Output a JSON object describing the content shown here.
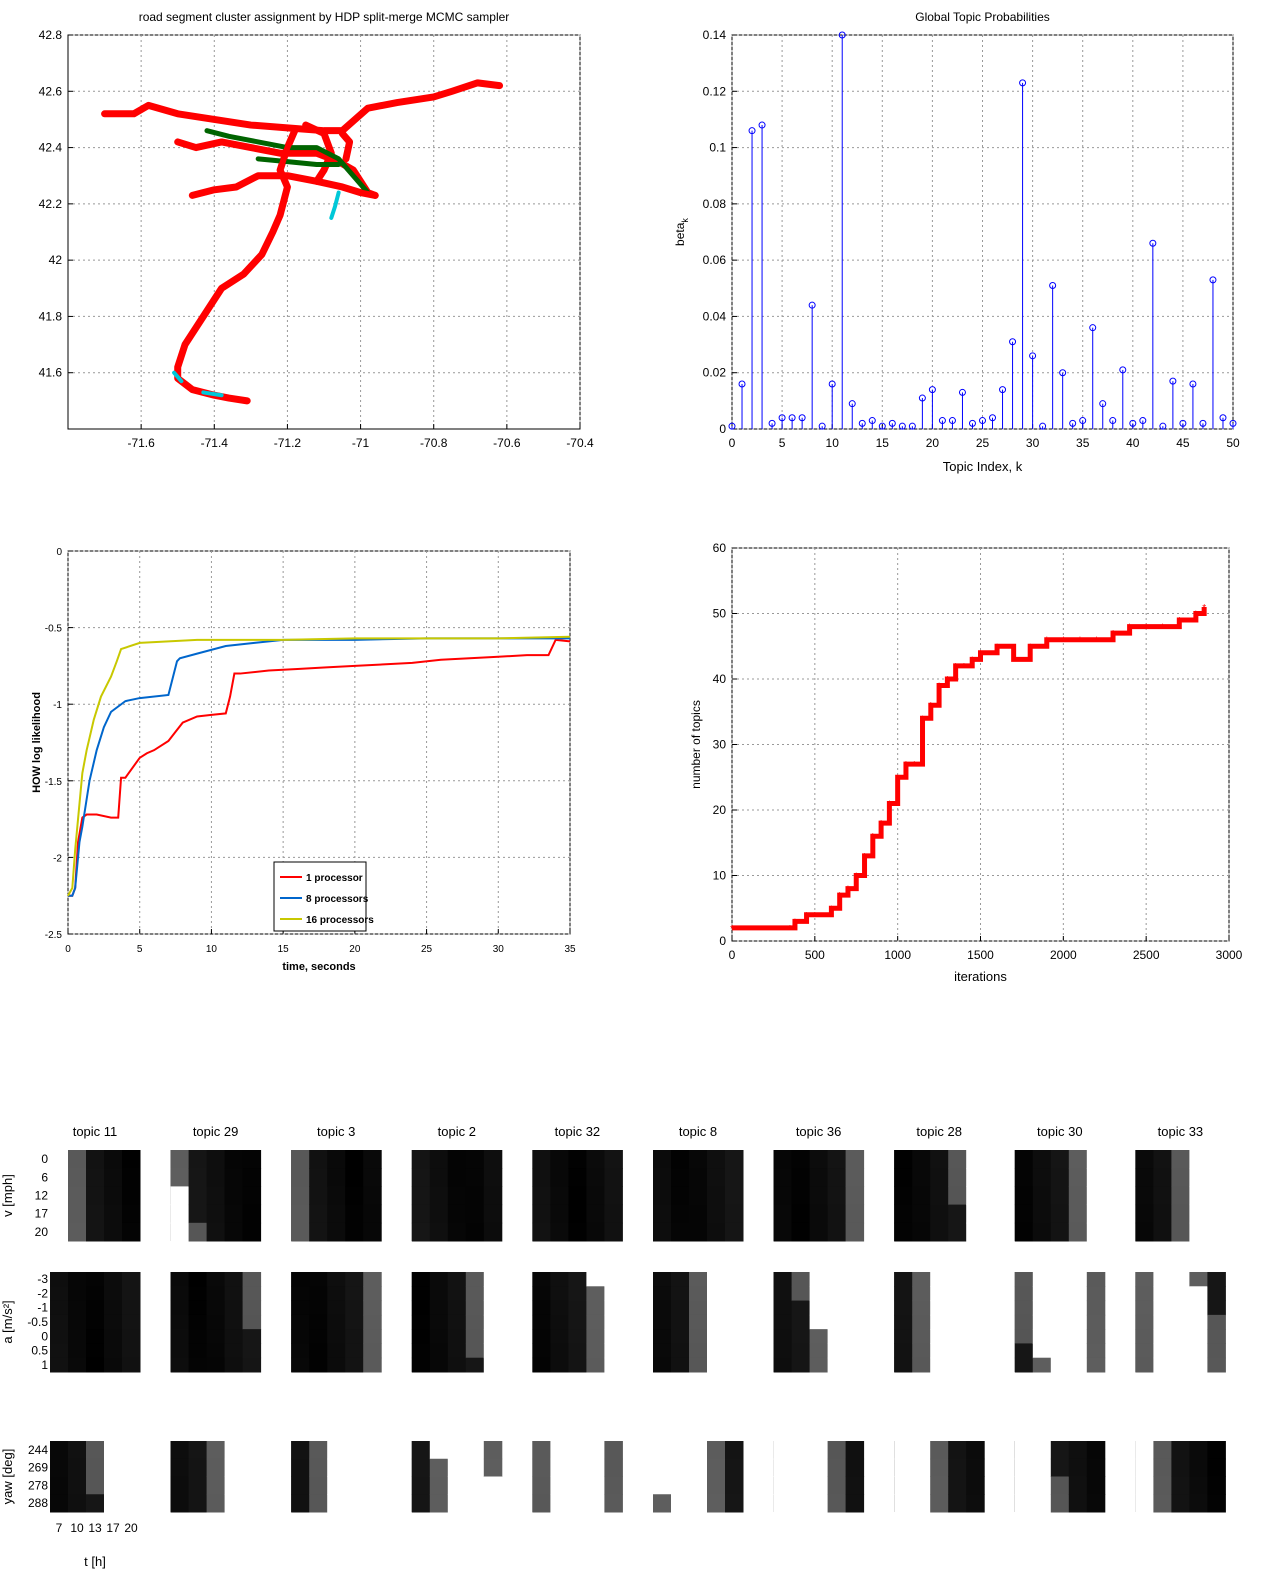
{
  "chart_data": [
    {
      "type": "scatter",
      "title": "road segment cluster assignment by HDP split-merge MCMC sampler",
      "xlim": [
        -71.8,
        -70.4
      ],
      "ylim": [
        41.4,
        42.8
      ],
      "xticks": [
        "-71.6",
        "-71.4",
        "-71.2",
        "-71",
        "-70.8",
        "-70.6",
        "-70.4"
      ],
      "yticks": [
        "41.6",
        "41.8",
        "42",
        "42.2",
        "42.4",
        "42.6",
        "42.8"
      ],
      "grid": true,
      "colors": {
        "main": "#ff0000",
        "secondary": "#006400",
        "tertiary": "#00c8d8"
      },
      "routes": [
        [
          [
            -71.7,
            42.52
          ],
          [
            -71.62,
            42.52
          ],
          [
            -71.58,
            42.55
          ],
          [
            -71.5,
            42.52
          ],
          [
            -71.4,
            42.5
          ],
          [
            -71.3,
            42.48
          ],
          [
            -71.2,
            42.47
          ],
          [
            -71.1,
            42.46
          ],
          [
            -71.05,
            42.46
          ],
          [
            -70.98,
            42.54
          ],
          [
            -70.9,
            42.56
          ],
          [
            -70.8,
            42.58
          ],
          [
            -70.75,
            42.6
          ],
          [
            -70.68,
            42.63
          ],
          [
            -70.62,
            42.62
          ]
        ],
        [
          [
            -71.5,
            42.42
          ],
          [
            -71.45,
            42.4
          ],
          [
            -71.38,
            42.42
          ],
          [
            -71.3,
            42.4
          ],
          [
            -71.22,
            42.38
          ],
          [
            -71.12,
            42.38
          ],
          [
            -71.06,
            42.35
          ],
          [
            -71.02,
            42.32
          ],
          [
            -70.98,
            42.24
          ],
          [
            -70.96,
            42.23
          ]
        ],
        [
          [
            -71.46,
            42.23
          ],
          [
            -71.4,
            42.25
          ],
          [
            -71.34,
            42.26
          ],
          [
            -71.28,
            42.3
          ],
          [
            -71.2,
            42.3
          ],
          [
            -71.12,
            42.28
          ],
          [
            -71.05,
            42.26
          ],
          [
            -71.0,
            42.24
          ],
          [
            -70.96,
            42.23
          ]
        ],
        [
          [
            -71.18,
            42.46
          ],
          [
            -71.2,
            42.4
          ],
          [
            -71.22,
            42.32
          ],
          [
            -71.2,
            42.26
          ],
          [
            -71.22,
            42.16
          ],
          [
            -71.24,
            42.1
          ],
          [
            -71.27,
            42.02
          ],
          [
            -71.32,
            41.95
          ],
          [
            -71.38,
            41.9
          ],
          [
            -71.42,
            41.82
          ],
          [
            -71.45,
            41.76
          ],
          [
            -71.48,
            41.7
          ],
          [
            -71.5,
            41.62
          ],
          [
            -71.5,
            41.58
          ],
          [
            -71.46,
            41.54
          ],
          [
            -71.4,
            41.52
          ],
          [
            -71.36,
            41.51
          ],
          [
            -71.31,
            41.5
          ]
        ],
        [
          [
            -71.15,
            42.48
          ],
          [
            -71.1,
            42.45
          ],
          [
            -71.08,
            42.38
          ],
          [
            -71.1,
            42.32
          ],
          [
            -71.12,
            42.28
          ]
        ],
        [
          [
            -71.05,
            42.45
          ],
          [
            -71.03,
            42.42
          ],
          [
            -71.04,
            42.36
          ]
        ]
      ],
      "secondary_routes": [
        [
          [
            -71.42,
            42.46
          ],
          [
            -71.36,
            42.44
          ],
          [
            -71.28,
            42.42
          ],
          [
            -71.2,
            42.4
          ],
          [
            -71.12,
            42.4
          ],
          [
            -71.06,
            42.36
          ],
          [
            -71.02,
            42.3
          ],
          [
            -70.98,
            42.24
          ]
        ],
        [
          [
            -71.28,
            42.36
          ],
          [
            -71.2,
            42.35
          ],
          [
            -71.12,
            42.34
          ],
          [
            -71.06,
            42.34
          ]
        ]
      ],
      "tertiary_routes": [
        [
          [
            -71.06,
            42.24
          ],
          [
            -71.07,
            42.19
          ],
          [
            -71.08,
            42.15
          ]
        ],
        [
          [
            -71.51,
            41.6
          ],
          [
            -71.49,
            41.57
          ]
        ],
        [
          [
            -71.43,
            41.53
          ],
          [
            -71.38,
            41.52
          ]
        ]
      ]
    },
    {
      "type": "stem",
      "title": "Global Topic Probabilities",
      "xlabel": "Topic Index, k",
      "ylabel": "beta_k",
      "xlim": [
        0,
        50
      ],
      "ylim": [
        0,
        0.14
      ],
      "xticks": [
        "0",
        "5",
        "10",
        "15",
        "20",
        "25",
        "30",
        "35",
        "40",
        "45",
        "50"
      ],
      "yticks": [
        "0",
        "0.02",
        "0.04",
        "0.06",
        "0.08",
        "0.1",
        "0.12",
        "0.14"
      ],
      "grid": true,
      "color": "#0000ff",
      "values": [
        0.001,
        0.016,
        0.106,
        0.108,
        0.002,
        0.004,
        0.004,
        0.004,
        0.044,
        0.001,
        0.016,
        0.14,
        0.009,
        0.002,
        0.003,
        0.001,
        0.002,
        0.001,
        0.001,
        0.011,
        0.014,
        0.003,
        0.003,
        0.013,
        0.002,
        0.003,
        0.004,
        0.014,
        0.031,
        0.123,
        0.026,
        0.001,
        0.051,
        0.02,
        0.002,
        0.003,
        0.036,
        0.009,
        0.003,
        0.021,
        0.002,
        0.003,
        0.066,
        0.001,
        0.017,
        0.002,
        0.016,
        0.002,
        0.053,
        0.004,
        0.002
      ]
    },
    {
      "type": "line",
      "ylabel": "HOW log likelihood",
      "xlabel": "time, seconds",
      "xlim": [
        0,
        35
      ],
      "ylim": [
        -2.5,
        0
      ],
      "xticks": [
        "0",
        "5",
        "10",
        "15",
        "20",
        "25",
        "30",
        "35"
      ],
      "yticks": [
        "0",
        "-0.5",
        "-1",
        "-1.5",
        "-2",
        "-2.5"
      ],
      "grid": true,
      "legend": "bottom-center",
      "series": [
        {
          "name": "1 processor",
          "color": "#ff0000",
          "x": [
            0,
            0.3,
            0.5,
            0.7,
            1,
            1.3,
            2,
            3,
            3.5,
            3.7,
            4,
            5,
            5.5,
            6,
            7,
            7.5,
            8,
            9,
            10,
            11,
            11.3,
            11.6,
            12,
            14,
            16,
            18,
            20,
            22,
            24,
            26,
            28,
            30,
            32,
            33.5,
            34,
            35
          ],
          "y": [
            -2.25,
            -2.25,
            -2.2,
            -1.9,
            -1.74,
            -1.72,
            -1.72,
            -1.74,
            -1.74,
            -1.48,
            -1.48,
            -1.35,
            -1.32,
            -1.3,
            -1.24,
            -1.18,
            -1.12,
            -1.08,
            -1.07,
            -1.06,
            -0.95,
            -0.8,
            -0.8,
            -0.78,
            -0.77,
            -0.76,
            -0.75,
            -0.74,
            -0.73,
            -0.71,
            -0.7,
            -0.69,
            -0.68,
            -0.68,
            -0.58,
            -0.59
          ]
        },
        {
          "name": "8 processors",
          "color": "#0066cc",
          "x": [
            0,
            0.3,
            0.5,
            0.8,
            1,
            1.5,
            2,
            2.5,
            3,
            4,
            5,
            7,
            7.6,
            7.8,
            9,
            11,
            13,
            15,
            20,
            25,
            30,
            35
          ],
          "y": [
            -2.25,
            -2.25,
            -2.2,
            -1.9,
            -1.8,
            -1.5,
            -1.3,
            -1.15,
            -1.05,
            -0.98,
            -0.96,
            -0.94,
            -0.72,
            -0.7,
            -0.67,
            -0.62,
            -0.6,
            -0.58,
            -0.58,
            -0.57,
            -0.57,
            -0.57
          ]
        },
        {
          "name": "16 processors",
          "color": "#c8c800",
          "x": [
            0,
            0.3,
            0.5,
            0.7,
            1,
            1.3,
            1.8,
            2.3,
            3,
            3.4,
            3.7,
            5,
            7,
            9,
            12,
            15,
            20,
            25,
            30,
            35
          ],
          "y": [
            -2.25,
            -2.2,
            -1.95,
            -1.75,
            -1.45,
            -1.3,
            -1.1,
            -0.95,
            -0.82,
            -0.72,
            -0.64,
            -0.6,
            -0.59,
            -0.58,
            -0.58,
            -0.58,
            -0.57,
            -0.57,
            -0.57,
            -0.56
          ]
        }
      ]
    },
    {
      "type": "line",
      "ylabel": "number of topics",
      "xlabel": "iterations",
      "xlim": [
        0,
        3000
      ],
      "ylim": [
        0,
        60
      ],
      "xticks": [
        "0",
        "500",
        "1000",
        "1500",
        "2000",
        "2500",
        "3000"
      ],
      "yticks": [
        "0",
        "10",
        "20",
        "30",
        "40",
        "50",
        "60"
      ],
      "grid": true,
      "color": "#ff0000",
      "x": [
        0,
        350,
        380,
        450,
        500,
        600,
        650,
        700,
        750,
        800,
        850,
        900,
        950,
        1000,
        1050,
        1100,
        1150,
        1200,
        1250,
        1300,
        1350,
        1400,
        1450,
        1500,
        1600,
        1700,
        1800,
        1900,
        2000,
        2100,
        2200,
        2300,
        2400,
        2500,
        2600,
        2700,
        2800,
        2850
      ],
      "y": [
        2,
        2,
        3,
        4,
        4,
        5,
        7,
        8,
        10,
        13,
        16,
        18,
        21,
        25,
        27,
        27,
        34,
        36,
        39,
        40,
        42,
        42,
        43,
        44,
        45,
        43,
        45,
        46,
        46,
        46,
        46,
        47,
        48,
        48,
        48,
        49,
        50,
        51
      ]
    }
  ],
  "topic_grid": {
    "topics": [
      "topic 11",
      "topic 29",
      "topic 3",
      "topic 2",
      "topic 32",
      "topic 8",
      "topic 36",
      "topic 28",
      "topic 30",
      "topic 33"
    ],
    "rows": [
      {
        "label": "v [mph]",
        "ticks": [
          "0",
          "6",
          "12",
          "17",
          "20"
        ]
      },
      {
        "label": "a [m/s²]",
        "ticks": [
          "-3",
          "-2",
          "-1",
          "-0.5",
          "0",
          "0.5",
          "1"
        ]
      },
      {
        "label": "yaw [deg]",
        "ticks": [
          "244",
          "269",
          "278",
          "288"
        ]
      }
    ],
    "xticks": [
      "7",
      "10",
      "13",
      "17",
      "20"
    ],
    "xlabel": "t [h]"
  }
}
